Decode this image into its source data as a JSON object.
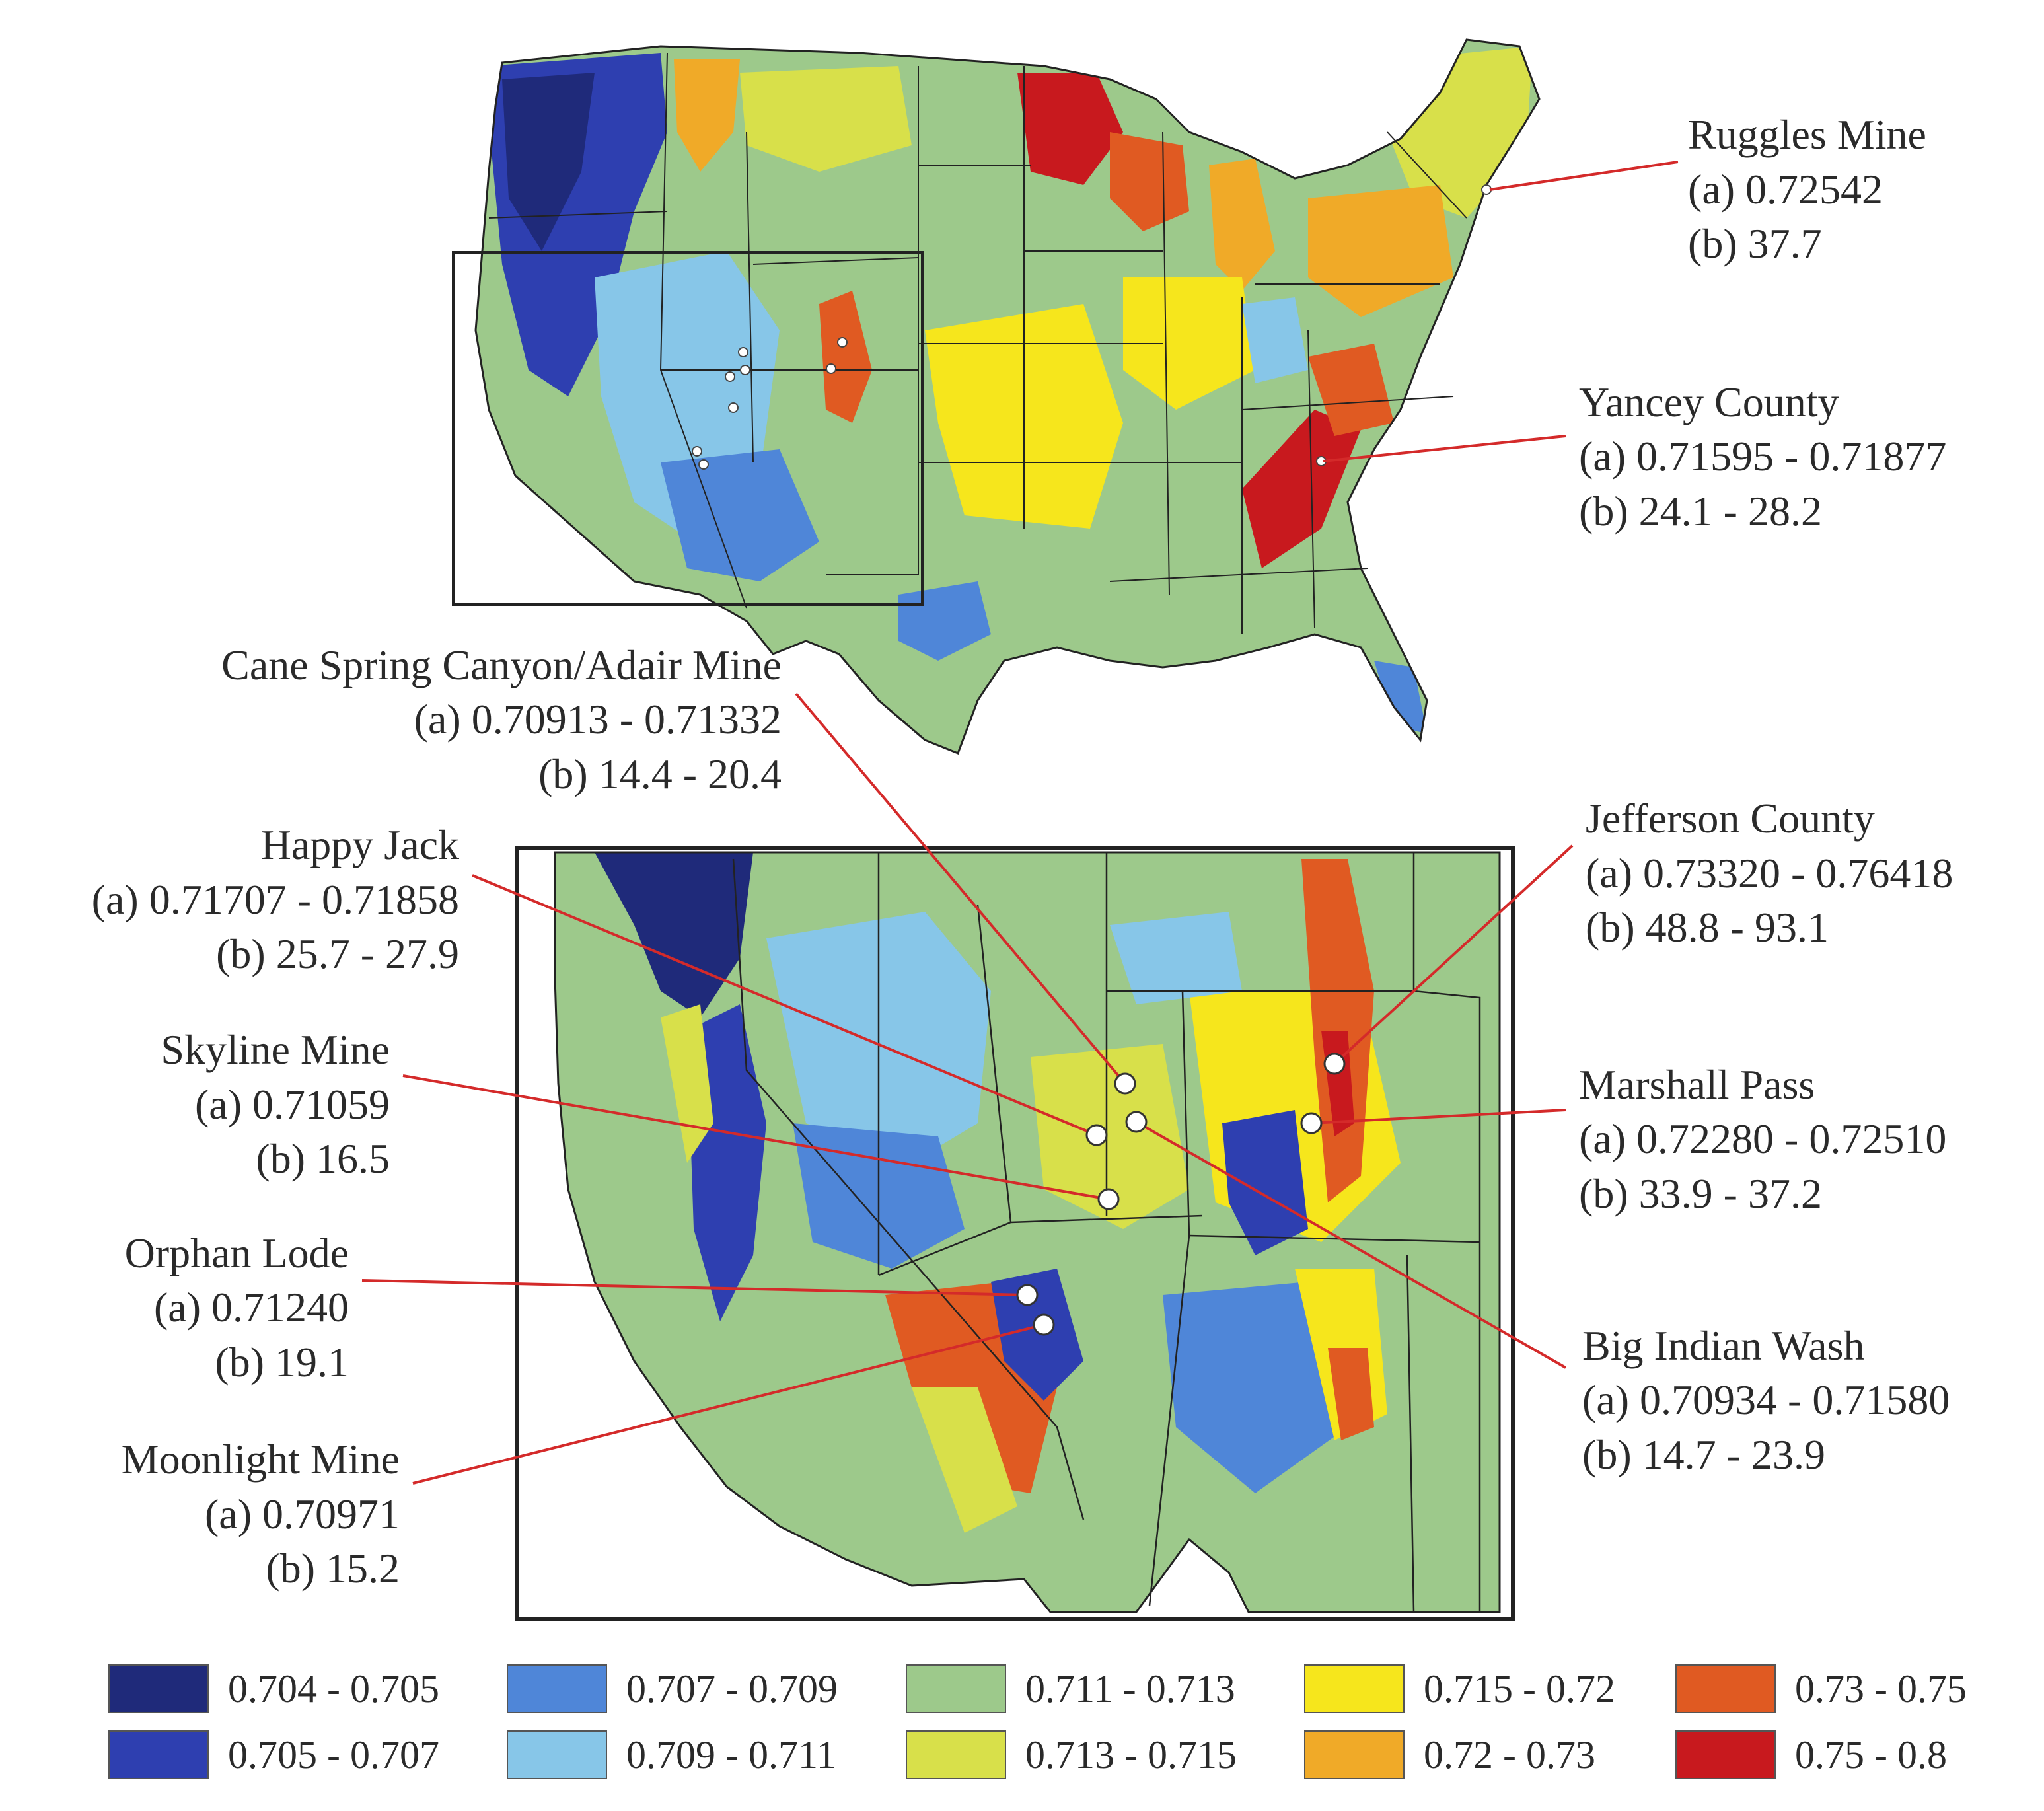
{
  "colors": {
    "c1": "#1f2a7a",
    "c2": "#2e3fb0",
    "c3": "#4f86d8",
    "c4": "#87c6e8",
    "c5": "#9dc98b",
    "c6": "#d8e04a",
    "c7": "#f6e61c",
    "c8": "#f0aa28",
    "c9": "#e05a22",
    "c10": "#c8191e",
    "leader": "#d42a2a",
    "marker": "#ffffff"
  },
  "legend": [
    {
      "label": "0.704 - 0.705",
      "color": "#1f2a7a"
    },
    {
      "label": "0.705 - 0.707",
      "color": "#2e3fb0"
    },
    {
      "label": "0.707 - 0.709",
      "color": "#4f86d8"
    },
    {
      "label": "0.709 - 0.711",
      "color": "#87c6e8"
    },
    {
      "label": "0.711 - 0.713",
      "color": "#9dc98b"
    },
    {
      "label": "0.713 - 0.715",
      "color": "#d8e04a"
    },
    {
      "label": "0.715 - 0.72",
      "color": "#f6e61c"
    },
    {
      "label": "0.72 - 0.73",
      "color": "#f0aa28"
    },
    {
      "label": "0.73 - 0.75",
      "color": "#e05a22"
    },
    {
      "label": "0.75 - 0.8",
      "color": "#c8191e"
    }
  ],
  "sites": [
    {
      "name": "Ruggles Mine",
      "a": "(a) 0.72542",
      "b": "(b) 37.7"
    },
    {
      "name": "Yancey County",
      "a": "(a) 0.71595 - 0.71877",
      "b": "(b) 24.1 - 28.2"
    },
    {
      "name": "Cane Spring Canyon/Adair Mine",
      "a": "(a) 0.70913 - 0.71332",
      "b": "(b) 14.4 - 20.4"
    },
    {
      "name": "Happy Jack",
      "a": "(a) 0.71707 - 0.71858",
      "b": "(b) 25.7 - 27.9"
    },
    {
      "name": "Skyline Mine",
      "a": "(a) 0.71059",
      "b": "(b) 16.5"
    },
    {
      "name": "Orphan Lode",
      "a": "(a) 0.71240",
      "b": "(b) 19.1"
    },
    {
      "name": "Moonlight Mine",
      "a": "(a) 0.70971",
      "b": "(b) 15.2"
    },
    {
      "name": "Jefferson County",
      "a": "(a) 0.73320 - 0.76418",
      "b": "(b) 48.8 - 93.1"
    },
    {
      "name": "Marshall Pass",
      "a": "(a) 0.72280 - 0.72510",
      "b": "(b) 33.9 - 37.2"
    },
    {
      "name": "Big Indian Wash",
      "a": "(a) 0.70934 - 0.71580",
      "b": "(b) 14.7 - 23.9"
    }
  ]
}
